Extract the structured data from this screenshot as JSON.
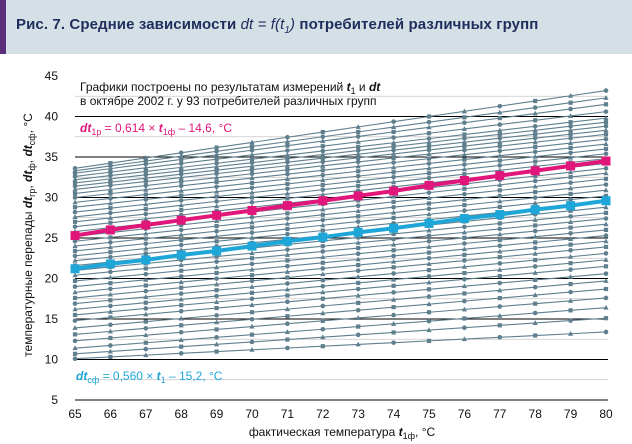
{
  "header": {
    "fig": "Рис. 7. Средние зависимости",
    "dt": "dt",
    "eq": "= f(t",
    "sub": "1",
    "close": ")",
    "tail": "потребителей различных групп"
  },
  "colors": {
    "magenta": "#e0167a",
    "cyan": "#1ea6d8",
    "bundle": "#5f7f8e",
    "header_bg": "#d4e0e6"
  },
  "chart_data": {
    "type": "line",
    "xlabel": "фактическая температура t1ф, °C",
    "ylabel": "температурные перепады dtгр, dtф, dtсф, °C",
    "x": [
      65,
      66,
      67,
      68,
      69,
      70,
      71,
      72,
      73,
      74,
      75,
      76,
      77,
      78,
      79,
      80
    ],
    "ylim": [
      5,
      45
    ],
    "yticks": [
      5,
      10,
      15,
      20,
      25,
      30,
      35,
      40,
      45
    ],
    "grid": "horizontal lines every 5 °C",
    "note_line1": "Графики построены по результатам измерений t1 и dt",
    "note_line2": "в октябре 2002 г. у 93 потребителей различных групп",
    "series": [
      {
        "name": "dt1р = 0,614 × t1ф – 14,6, °C",
        "color": "#e0167a",
        "values": [
          25.3,
          26.0,
          26.6,
          27.2,
          27.8,
          28.4,
          29.0,
          29.6,
          30.2,
          30.8,
          31.5,
          32.1,
          32.7,
          33.3,
          33.9,
          34.5
        ]
      },
      {
        "name": "dtсф = 0,560 × t1 – 15,2, °C",
        "color": "#1ea6d8",
        "values": [
          21.2,
          21.8,
          22.3,
          22.9,
          23.4,
          24.0,
          24.6,
          25.1,
          25.7,
          26.2,
          26.8,
          27.4,
          27.9,
          28.5,
          29.0,
          29.6
        ]
      }
    ],
    "bundle": {
      "count": 40,
      "start_values": [
        10.1,
        10.7,
        11.4,
        12.3,
        13.1,
        13.9,
        14.8,
        15.5,
        16.2,
        16.9,
        17.6,
        18.3,
        19.0,
        19.7,
        20.4,
        21.0,
        21.6,
        22.2,
        22.8,
        23.4,
        24.0,
        24.6,
        25.2,
        25.8,
        26.4,
        27.0,
        27.6,
        28.2,
        28.8,
        29.4,
        30.0,
        30.5,
        31.0,
        31.4,
        31.8,
        32.2,
        32.6,
        33.0,
        33.3,
        33.6
      ],
      "end_values": [
        13.4,
        15.1,
        16.4,
        17.6,
        18.7,
        19.7,
        20.6,
        21.5,
        22.3,
        23.1,
        23.9,
        24.6,
        25.3,
        26.0,
        26.7,
        27.4,
        28.1,
        28.8,
        29.5,
        30.2,
        30.9,
        31.6,
        32.3,
        33.0,
        33.6,
        34.2,
        34.8,
        35.4,
        36.0,
        36.6,
        37.2,
        37.8,
        38.3,
        38.8,
        39.3,
        39.8,
        40.6,
        41.5,
        42.3,
        43.2
      ]
    },
    "labels": {
      "magenta_dt": "dt",
      "magenta_sub": "1р",
      "magenta_rest": " = 0,614 × ",
      "magenta_t": "t",
      "magenta_tsub": "1ф",
      "magenta_tail": " – 14,6, °C",
      "cyan_dt": "dt",
      "cyan_sub": "сф",
      "cyan_rest": " = 0,560 × ",
      "cyan_t": "t",
      "cyan_tsub": "1",
      "cyan_tail": " – 15,2, °C",
      "note_a": "Графики построены по результатам измерений ",
      "note_t": "t",
      "note_tsub": "1",
      "note_and": " и ",
      "note_dt": "dt",
      "note_line2": "в октябре 2002 г. у 93 потребителей различных групп",
      "xlabel_a": "фактическая температура ",
      "xlabel_t": "t",
      "xlabel_sub": "1ф",
      "xlabel_b": ", °C",
      "ylabel_a": "температурные перепады ",
      "ylabel_dt1": "dt",
      "ylabel_s1": "гр",
      "ylabel_c1": ", ",
      "ylabel_dt2": "dt",
      "ylabel_s2": "ф",
      "ylabel_c2": ", ",
      "ylabel_dt3": "dt",
      "ylabel_s3": "сф",
      "ylabel_b": ", °C"
    }
  }
}
